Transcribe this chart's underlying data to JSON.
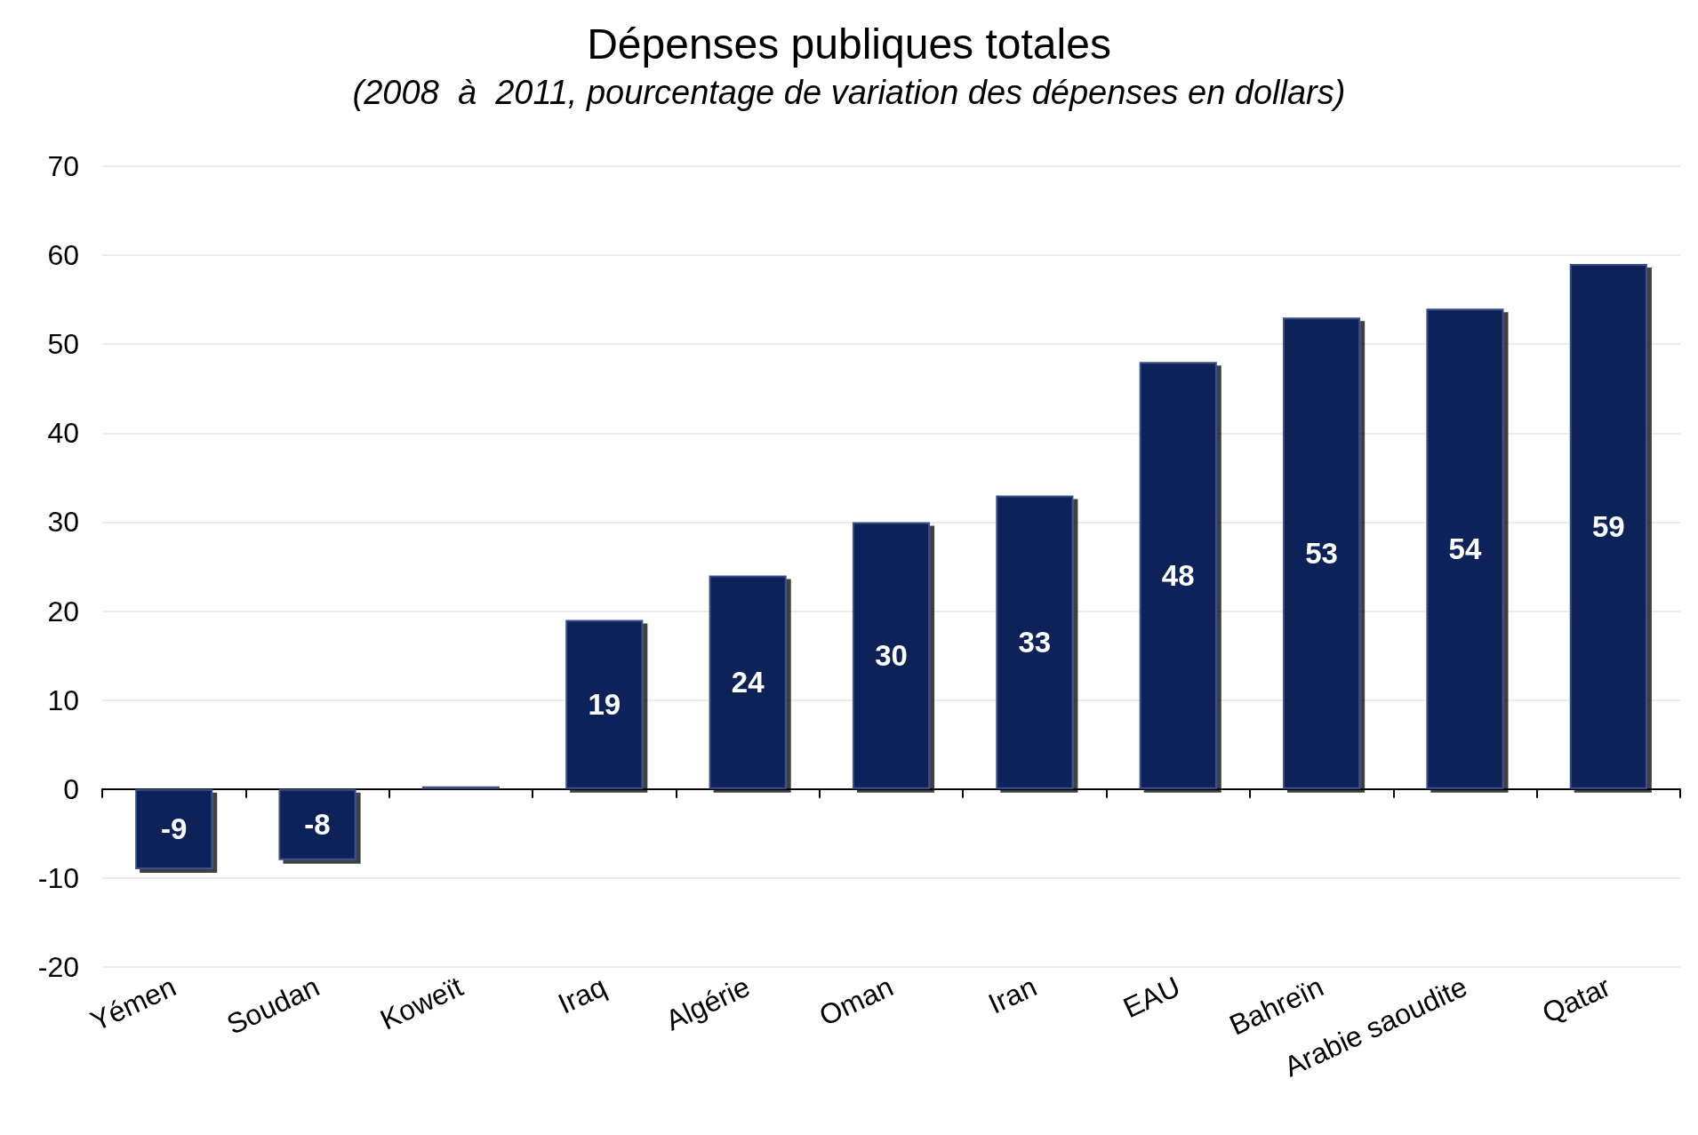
{
  "chart_data": {
    "type": "bar",
    "title": "Dépenses publiques totales",
    "subtitle": "(2008  à  2011, pourcentage de variation des dépenses en dollars)",
    "categories": [
      "Yémen",
      "Soudan",
      "Koweït",
      "Iraq",
      "Algérie",
      "Oman",
      "Iran",
      "EAU",
      "Bahreïn",
      "Arabie saoudite",
      "Qatar"
    ],
    "values": [
      -9,
      -8,
      0.3,
      19,
      24,
      30,
      33,
      48,
      53,
      54,
      59
    ],
    "value_labels": [
      "-9",
      "-8",
      null,
      "19",
      "24",
      "30",
      "33",
      "48",
      "53",
      "54",
      "59"
    ],
    "color": "#0d2258",
    "ylim": [
      -20,
      70
    ],
    "yticks": [
      -20,
      -10,
      0,
      10,
      20,
      30,
      40,
      50,
      60,
      70
    ],
    "grid": "y"
  }
}
